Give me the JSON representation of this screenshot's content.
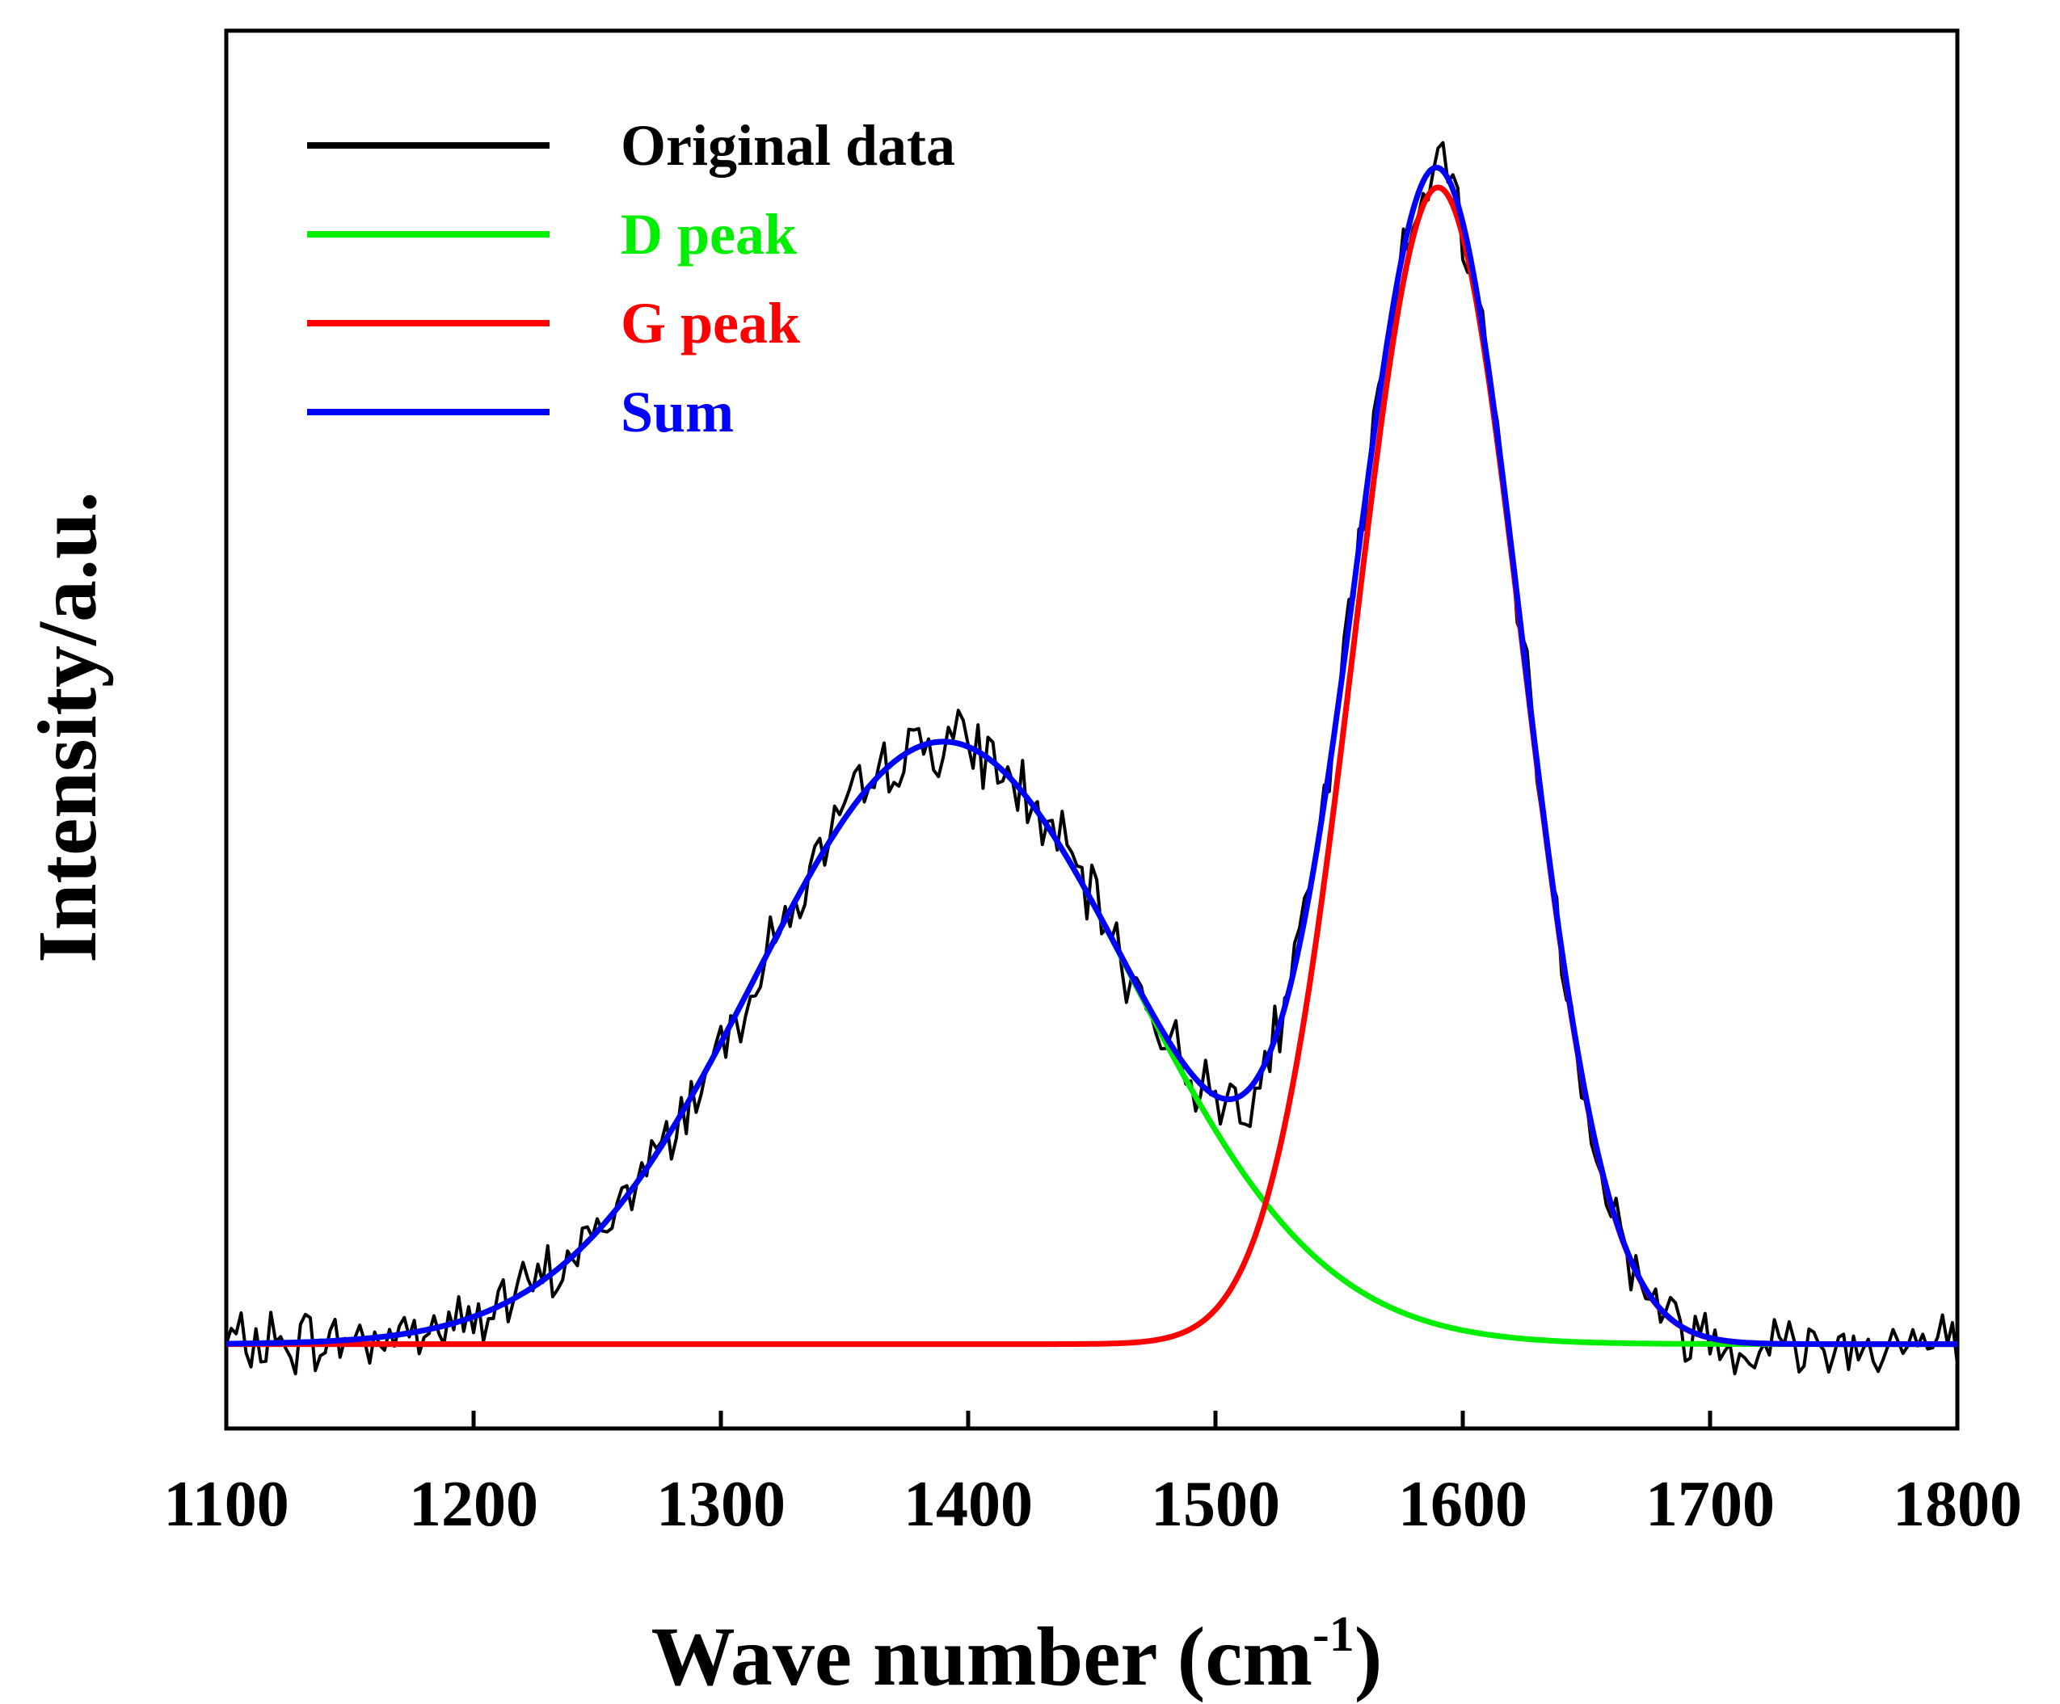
{
  "chart_data": {
    "type": "line",
    "title": "",
    "xlabel": "Wave number (cm",
    "xlabel_sup": "-1",
    "xlabel_close": ")",
    "ylabel": "Intensity/a.u.",
    "xlim": [
      1100,
      1800
    ],
    "ylim": [
      -0.07,
      1.09
    ],
    "x_ticks": [
      1100,
      1200,
      1300,
      1400,
      1500,
      1600,
      1700,
      1800
    ],
    "y_ticks_shown": false,
    "legend_position": "top-left",
    "series": [
      {
        "name": "Original data",
        "color": "#000000",
        "kind": "noisy-sum",
        "noise_amplitude": 0.022,
        "x_step": 2,
        "seed": 7
      },
      {
        "name": "D peak",
        "color": "#00ee00",
        "kind": "gaussian",
        "center": 1390,
        "fwhm": 180,
        "amplitude": 0.5
      },
      {
        "name": "G peak",
        "color": "#ff0000",
        "kind": "gaussian",
        "center": 1590,
        "fwhm": 80,
        "amplitude": 0.96
      },
      {
        "name": "Sum",
        "color": "#0000ff",
        "kind": "sum",
        "of": [
          "D peak",
          "G peak"
        ]
      }
    ]
  }
}
